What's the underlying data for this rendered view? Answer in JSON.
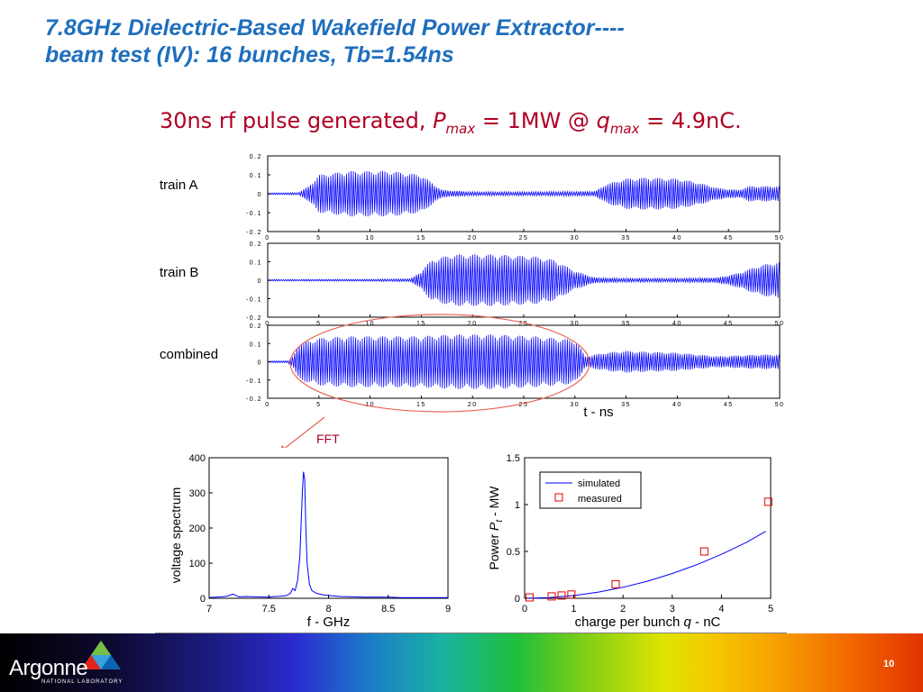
{
  "slide": {
    "title_line1": "7.8GHz Dielectric-Based Wakefield Power Extractor----",
    "title_line2": "beam test (IV): 16 bunches, Tb=1.54ns",
    "subtitle": {
      "pre": "30ns rf pulse generated, ",
      "p_sym": "P",
      "p_sub": "max",
      "mid": " = 1MW @ ",
      "q_sym": "q",
      "q_sub": "max",
      "post": " = 4.9nC."
    },
    "fft_label": "FFT",
    "page_number": "10",
    "logo": {
      "name": "Argonne",
      "sub": "NATIONAL LABORATORY"
    },
    "colors": {
      "title": "#1f6fbd",
      "accent": "#b00024",
      "trace": "#0000ff",
      "marker": "#e00000",
      "ellipse": "#e8645a"
    }
  },
  "chart_data": [
    {
      "type": "line",
      "id": "train-a",
      "label": "train A",
      "xlim": [
        0,
        50
      ],
      "ylim": [
        -0.2,
        0.2
      ],
      "xticks": [
        "0",
        "5",
        "10",
        "15",
        "20",
        "25",
        "30",
        "35",
        "40",
        "45",
        "50"
      ],
      "yticks": [
        "0.2",
        "0.1",
        "0",
        "-0.1",
        "-0.2"
      ],
      "envelope": {
        "x": [
          0,
          3,
          4,
          5,
          8,
          12,
          15,
          17,
          20,
          25,
          30,
          32,
          33,
          35,
          37,
          40,
          42,
          44,
          46,
          47,
          48,
          50
        ],
        "y": [
          0.004,
          0.006,
          0.04,
          0.1,
          0.12,
          0.12,
          0.1,
          0.02,
          0.01,
          0.01,
          0.012,
          0.014,
          0.05,
          0.08,
          0.085,
          0.08,
          0.06,
          0.03,
          0.02,
          0.04,
          0.04,
          0.04
        ]
      }
    },
    {
      "type": "line",
      "id": "train-b",
      "label": "train B",
      "xlim": [
        0,
        50
      ],
      "ylim": [
        -0.2,
        0.2
      ],
      "xticks": [
        "0",
        "5",
        "10",
        "15",
        "20",
        "25",
        "30",
        "35",
        "40",
        "45",
        "50"
      ],
      "yticks": [
        "0.2",
        "0.1",
        "0",
        "-0.1",
        "-0.2"
      ],
      "envelope": {
        "x": [
          0,
          10,
          14,
          15,
          16,
          18,
          22,
          26,
          28,
          30,
          32,
          35,
          40,
          42,
          44,
          46,
          48,
          50
        ],
        "y": [
          0.004,
          0.005,
          0.008,
          0.05,
          0.11,
          0.14,
          0.14,
          0.13,
          0.11,
          0.05,
          0.015,
          0.01,
          0.01,
          0.012,
          0.015,
          0.04,
          0.08,
          0.1
        ]
      }
    },
    {
      "type": "line",
      "id": "combined",
      "label": "combined",
      "xlim": [
        0,
        50
      ],
      "ylim": [
        -0.2,
        0.2
      ],
      "xlabel": "t - ns",
      "xticks": [
        "0",
        "5",
        "10",
        "15",
        "20",
        "25",
        "30",
        "35",
        "40",
        "45",
        "50"
      ],
      "yticks": [
        "0.2",
        "0.1",
        "0",
        "-0.1",
        "-0.2"
      ],
      "envelope": {
        "x": [
          0,
          2,
          2.5,
          3,
          5,
          8,
          12,
          15,
          18,
          22,
          26,
          30,
          30.5,
          31,
          33,
          35,
          37,
          40,
          42,
          44,
          46,
          48,
          50
        ],
        "y": [
          0.004,
          0.006,
          0.03,
          0.1,
          0.13,
          0.14,
          0.14,
          0.14,
          0.15,
          0.15,
          0.14,
          0.12,
          0.08,
          0.03,
          0.05,
          0.06,
          0.055,
          0.05,
          0.04,
          0.03,
          0.035,
          0.04,
          0.04
        ]
      }
    },
    {
      "type": "line",
      "id": "fft",
      "xlabel": "f - GHz",
      "ylabel": "voltage spectrum",
      "xlim": [
        7,
        9
      ],
      "ylim": [
        0,
        400
      ],
      "xticks": [
        "7",
        "7.5",
        "8",
        "8.5",
        "9"
      ],
      "yticks": [
        "0",
        "100",
        "200",
        "300",
        "400"
      ],
      "series": [
        {
          "x": [
            7.0,
            7.1,
            7.15,
            7.2,
            7.25,
            7.3,
            7.4,
            7.5,
            7.55,
            7.6,
            7.65,
            7.68,
            7.7,
            7.72,
            7.74,
            7.76,
            7.78,
            7.79,
            7.8,
            7.81,
            7.82,
            7.84,
            7.86,
            7.9,
            7.95,
            8.0,
            8.1,
            8.2,
            8.3,
            8.4,
            8.5,
            8.6,
            8.7,
            8.8,
            9.0
          ],
          "y": [
            2,
            4,
            6,
            12,
            4,
            5,
            4,
            3,
            5,
            6,
            8,
            14,
            28,
            22,
            50,
            120,
            300,
            360,
            340,
            200,
            100,
            40,
            22,
            14,
            10,
            8,
            5,
            4,
            3,
            3,
            3,
            2,
            2,
            2,
            2
          ]
        }
      ]
    },
    {
      "type": "scatter",
      "id": "power-vs-charge",
      "xlabel": "charge per bunch q - nC",
      "ylabel": "Power P_t - MW",
      "xlim": [
        0,
        5
      ],
      "ylim": [
        0,
        1.5
      ],
      "xticks": [
        "0",
        "1",
        "2",
        "3",
        "4",
        "5"
      ],
      "yticks": [
        "0",
        "0.5",
        "1",
        "1.5"
      ],
      "legend_position": "top-left",
      "series": [
        {
          "name": "simulated",
          "kind": "line",
          "x": [
            0,
            0.5,
            1,
            1.5,
            2,
            2.5,
            3,
            3.5,
            4,
            4.5,
            4.9
          ],
          "y": [
            0,
            0.007,
            0.029,
            0.066,
            0.117,
            0.183,
            0.264,
            0.359,
            0.469,
            0.594,
            0.714
          ]
        },
        {
          "name": "measured",
          "kind": "marker",
          "x": [
            0.1,
            0.55,
            0.75,
            0.95,
            1.85,
            3.65,
            4.95
          ],
          "y": [
            0.01,
            0.02,
            0.03,
            0.04,
            0.15,
            0.5,
            1.03
          ]
        }
      ]
    }
  ]
}
